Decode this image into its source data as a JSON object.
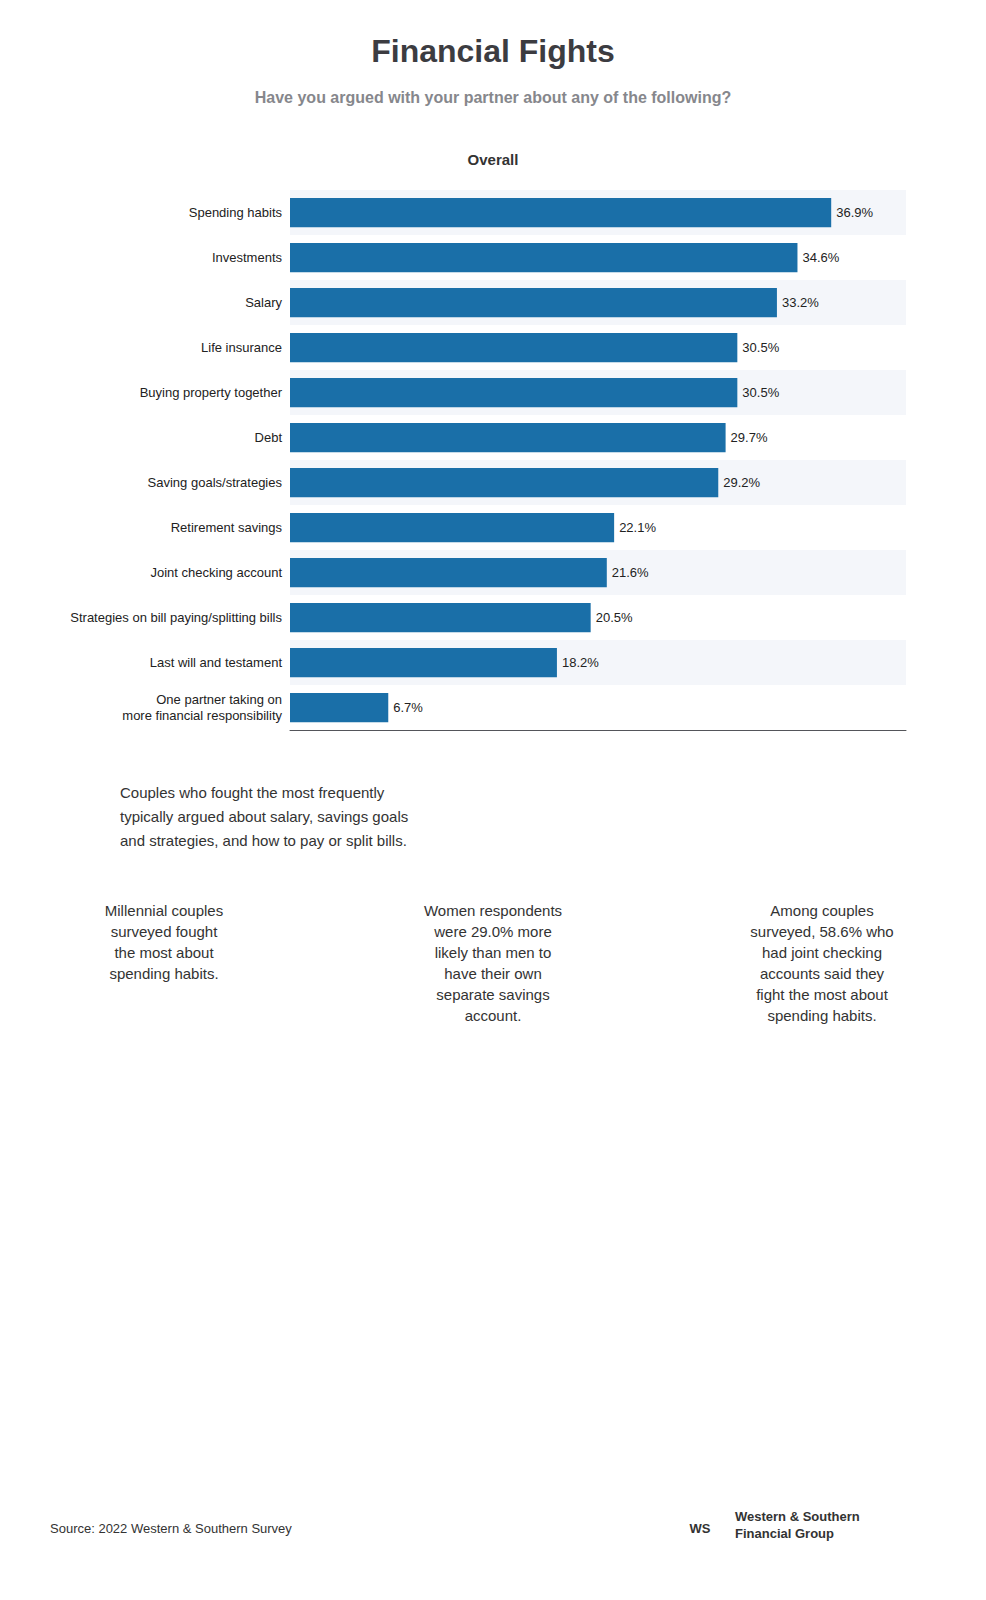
{
  "chart_data": {
    "type": "bar",
    "orientation": "horizontal",
    "title": "Financial Fights",
    "subtitle": "Have you argued with your partner about any of the following?",
    "categories": [
      "Spending habits",
      "Investments",
      "Salary",
      "Life insurance",
      "Buying property together",
      "Debt",
      "Saving goals/strategies",
      "Retirement savings",
      "Joint checking account",
      "Strategies on bill paying/splitting bills",
      "Last will and testament",
      "One partner taking on\nmore financial responsibility"
    ],
    "values": [
      36.9,
      34.6,
      33.2,
      30.5,
      30.5,
      29.7,
      29.2,
      22.1,
      21.6,
      20.5,
      18.2,
      6.7
    ],
    "value_labels": [
      "36.9%",
      "34.6%",
      "33.2%",
      "30.5%",
      "30.5%",
      "29.7%",
      "29.2%",
      "22.1%",
      "21.6%",
      "20.5%",
      "18.2%",
      "6.7%"
    ],
    "data_labels": true,
    "color": "#1a6fa8",
    "xlim": [
      0,
      42
    ],
    "xticks": [],
    "tick_labels": "y",
    "grid": false,
    "annotations": [
      "Overall",
      "Couples who fought the most frequently\ntypically argued about salary, savings goals\nand strategies, and how to pay or split bills.",
      "Millennial couples\nsurveyed fought\nthe most about\nspending habits.",
      "Women respondents\nwere 29.0% more\nlikely than men to\nhave their own\nseparate savings\naccount.",
      "Among couples\nsurveyed, 58.6% who\nhad joint checking\naccounts said they\nfight the most about\nspending habits.",
      "Source: 2022 Western & Southern Survey",
      "WS",
      "Western & Southern\nFinancial Group"
    ]
  }
}
